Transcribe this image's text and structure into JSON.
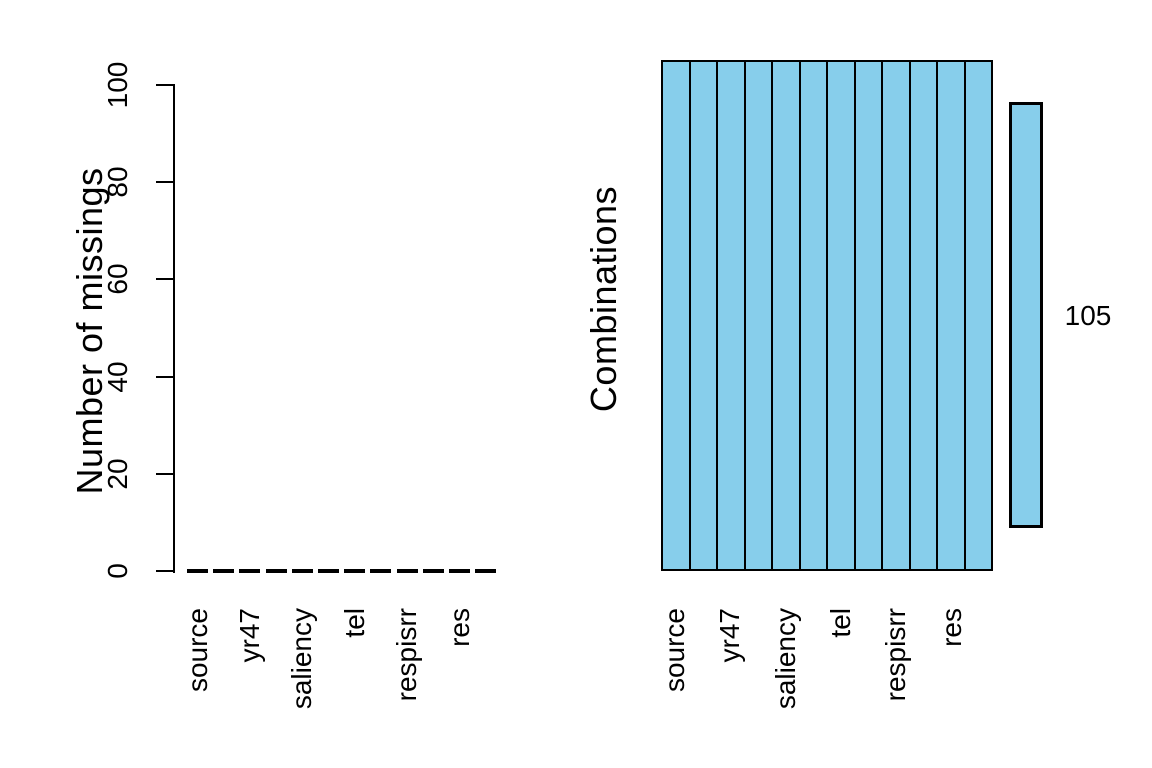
{
  "background": "#ffffff",
  "text_color": "#000000",
  "accent_fill": "#87CEEB",
  "line_color": "#000000",
  "chart_data": [
    {
      "type": "bar",
      "panel": "left",
      "title": "",
      "xlabel": "",
      "ylabel": "Number of missings",
      "ylim": [
        0,
        100
      ],
      "yticks": [
        0,
        20,
        40,
        60,
        80,
        100
      ],
      "n_bars": 12,
      "values": [
        0,
        0,
        0,
        0,
        0,
        0,
        0,
        0,
        0,
        0,
        0,
        0
      ],
      "bar_outline_color": "#000000",
      "x_labels": [
        "source",
        "yr47",
        "saliency",
        "tel",
        "respisrr",
        "res"
      ],
      "x_label_bar_indices": [
        0,
        2,
        4,
        6,
        8,
        10
      ],
      "grid": false,
      "legend": "none",
      "note": "all 12 variables have 0 missings; only every other variable name is labeled"
    },
    {
      "type": "heatmap",
      "panel": "right",
      "title": "",
      "xlabel": "",
      "ylabel": "Combinations",
      "rows": 1,
      "columns": 12,
      "cell_values": [
        [
          1,
          1,
          1,
          1,
          1,
          1,
          1,
          1,
          1,
          1,
          1,
          1
        ]
      ],
      "cell_color_observed": "#87CEEB",
      "cell_outline_color": "#000000",
      "x_labels": [
        "source",
        "yr47",
        "saliency",
        "tel",
        "respisrr",
        "res"
      ],
      "x_label_column_indices": [
        0,
        2,
        4,
        6,
        8,
        10
      ],
      "count_bar": {
        "value": 105,
        "label": "105",
        "fill": "#87CEEB"
      },
      "note": "single combination pattern (fully observed) occurring 105 times"
    }
  ]
}
